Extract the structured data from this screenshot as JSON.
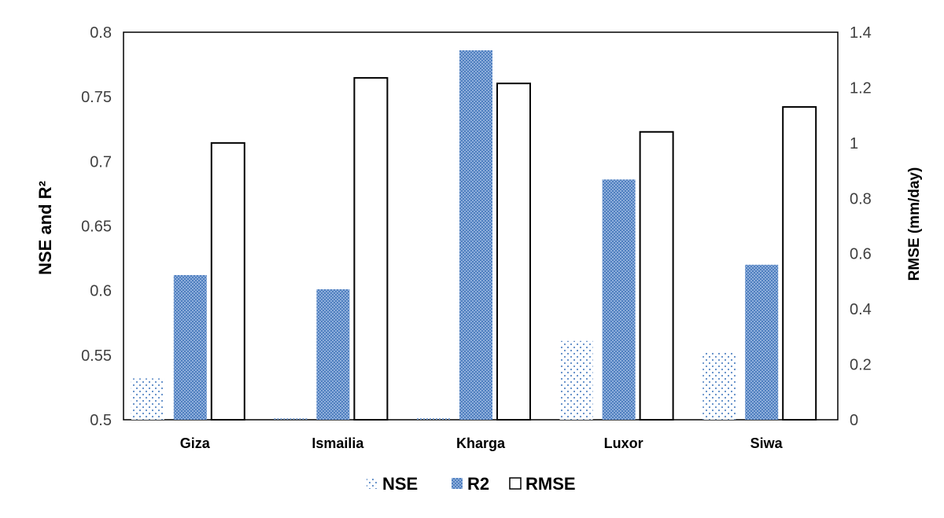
{
  "chart_data": {
    "type": "bar",
    "categories": [
      "Giza",
      "Ismailia",
      "Kharga",
      "Luxor",
      "Siwa"
    ],
    "series": [
      {
        "name": "NSE",
        "axis": "left",
        "pattern": "dots",
        "color": "#4f81bd",
        "values": [
          0.532,
          0.499,
          0.499,
          0.561,
          0.552
        ]
      },
      {
        "name": "R2",
        "axis": "left",
        "pattern": "checker",
        "color": "#4f81bd",
        "values": [
          0.612,
          0.601,
          0.786,
          0.686,
          0.62
        ]
      },
      {
        "name": "RMSE",
        "axis": "right",
        "pattern": "outline",
        "color": "#000000",
        "values": [
          1.0,
          1.235,
          1.215,
          1.04,
          1.13
        ]
      }
    ],
    "ylabel": "NSE and R²",
    "ylabel_right": "RMSE (mm/day)",
    "ylim": [
      0.5,
      0.8
    ],
    "ylim_right": [
      0,
      1.4
    ],
    "yticks": [
      "0.5",
      "0.55",
      "0.6",
      "0.65",
      "0.7",
      "0.75",
      "0.8"
    ],
    "yticks_right": [
      "0",
      "0.2",
      "0.4",
      "0.6",
      "0.8",
      "1",
      "1.2",
      "1.4"
    ],
    "grid": false,
    "legend_position": "bottom-center"
  }
}
